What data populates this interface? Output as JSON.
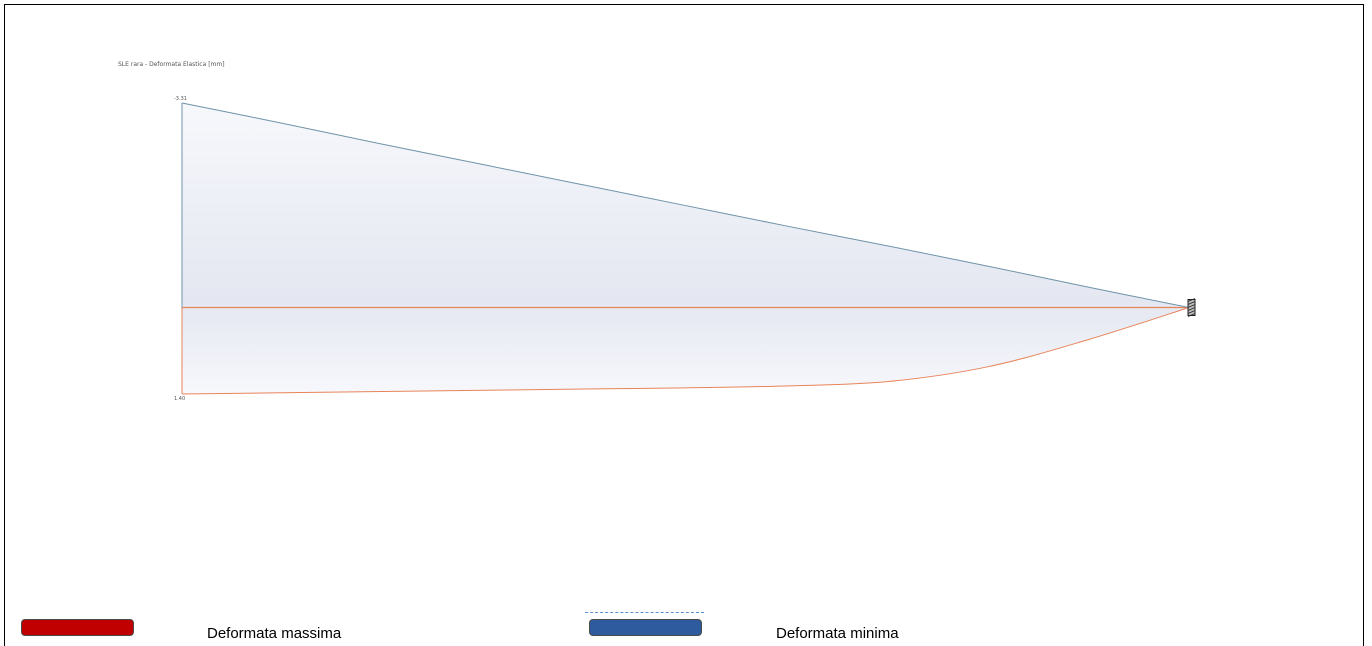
{
  "chart_data": {
    "type": "area",
    "title": "SLE rara - Deformata Elastica [mm]",
    "xlabel": "",
    "ylabel": "",
    "x": [
      0,
      0.1,
      0.2,
      0.3,
      0.4,
      0.5,
      0.6,
      0.7,
      0.8,
      0.9,
      1.0
    ],
    "ylim": [
      -3.31,
      1.4
    ],
    "grid": false,
    "series": [
      {
        "key": "min",
        "values": [
          -3.31,
          -2.98,
          -2.64,
          -2.31,
          -1.98,
          -1.65,
          -1.32,
          -1.0,
          -0.67,
          -0.33,
          0.0
        ]
      },
      {
        "key": "max",
        "values": [
          1.4,
          1.38,
          1.36,
          1.34,
          1.32,
          1.3,
          1.27,
          1.2,
          0.96,
          0.52,
          0.0
        ]
      }
    ],
    "annotations": [
      {
        "text": "-3.31",
        "x": 0,
        "y": -3.31
      },
      {
        "text": "1.40",
        "x": 0,
        "y": 1.4
      }
    ],
    "colors": {
      "min_line": "#6f93a8",
      "max_line": "#e8845a",
      "baseline": "#e8845a",
      "fill_top": "#f7f8fc",
      "fill_mid": "#e4e7f1"
    }
  },
  "legend": {
    "max_label": "Deformata massima",
    "min_label": "Deformata minima",
    "max_color": "#c00000",
    "min_color": "#2e5b9e"
  }
}
